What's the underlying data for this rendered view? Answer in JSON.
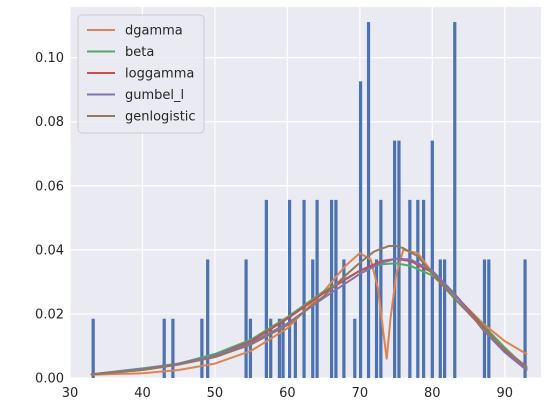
{
  "chart_data": {
    "type": "bar",
    "title": "",
    "xlabel": "",
    "ylabel": "",
    "xlim": [
      30,
      95
    ],
    "ylim": [
      0,
      0.1158
    ],
    "x_ticks": [
      30,
      40,
      50,
      60,
      70,
      80,
      90
    ],
    "y_ticks": [
      0.0,
      0.02,
      0.04,
      0.06,
      0.08,
      0.1
    ],
    "y_tick_labels": [
      "0.00",
      "0.02",
      "0.04",
      "0.06",
      "0.08",
      "0.10"
    ],
    "x_tick_labels": [
      "30",
      "40",
      "50",
      "60",
      "70",
      "80",
      "90"
    ],
    "grid": true,
    "legend_position": "top-left",
    "background_color": "#eaeaf2",
    "bar_color": "#4c72b0",
    "histogram": [
      {
        "x": 33.2,
        "value": 0.0185
      },
      {
        "x": 43.0,
        "value": 0.0185
      },
      {
        "x": 44.2,
        "value": 0.0185
      },
      {
        "x": 48.2,
        "value": 0.0185
      },
      {
        "x": 49.0,
        "value": 0.037
      },
      {
        "x": 54.3,
        "value": 0.037
      },
      {
        "x": 54.9,
        "value": 0.0185
      },
      {
        "x": 57.1,
        "value": 0.0556
      },
      {
        "x": 57.7,
        "value": 0.0185
      },
      {
        "x": 58.9,
        "value": 0.0185
      },
      {
        "x": 59.4,
        "value": 0.0185
      },
      {
        "x": 60.3,
        "value": 0.0556
      },
      {
        "x": 61.1,
        "value": 0.0185
      },
      {
        "x": 62.3,
        "value": 0.0556
      },
      {
        "x": 63.5,
        "value": 0.037
      },
      {
        "x": 64.1,
        "value": 0.0556
      },
      {
        "x": 66.1,
        "value": 0.0556
      },
      {
        "x": 66.7,
        "value": 0.0556
      },
      {
        "x": 67.8,
        "value": 0.037
      },
      {
        "x": 69.3,
        "value": 0.0185
      },
      {
        "x": 70.1,
        "value": 0.0926
      },
      {
        "x": 71.2,
        "value": 0.1111
      },
      {
        "x": 72.3,
        "value": 0.037
      },
      {
        "x": 72.9,
        "value": 0.0556
      },
      {
        "x": 74.8,
        "value": 0.0741
      },
      {
        "x": 75.4,
        "value": 0.0741
      },
      {
        "x": 76.9,
        "value": 0.0556
      },
      {
        "x": 78.0,
        "value": 0.0556
      },
      {
        "x": 78.8,
        "value": 0.0556
      },
      {
        "x": 80.0,
        "value": 0.0741
      },
      {
        "x": 81.1,
        "value": 0.037
      },
      {
        "x": 81.7,
        "value": 0.037
      },
      {
        "x": 83.1,
        "value": 0.1111
      },
      {
        "x": 87.2,
        "value": 0.037
      },
      {
        "x": 87.8,
        "value": 0.037
      },
      {
        "x": 92.8,
        "value": 0.037
      }
    ],
    "series": [
      {
        "name": "dgamma",
        "color": "#dd8452",
        "x": [
          33,
          40,
          45,
          50,
          55,
          60,
          65,
          68,
          70,
          71.5,
          72.5,
          73.2,
          73.7,
          74.2,
          75,
          76,
          78,
          80,
          83,
          87,
          90,
          93
        ],
        "y": [
          0.001,
          0.0015,
          0.0025,
          0.0045,
          0.0085,
          0.0155,
          0.027,
          0.035,
          0.039,
          0.037,
          0.028,
          0.015,
          0.006,
          0.018,
          0.032,
          0.04,
          0.039,
          0.033,
          0.026,
          0.017,
          0.0115,
          0.0075
        ]
      },
      {
        "name": "beta",
        "color": "#55a868",
        "x": [
          33,
          40,
          45,
          50,
          55,
          60,
          65,
          70,
          73,
          75,
          77,
          80,
          83,
          87,
          90,
          93
        ],
        "y": [
          0.0012,
          0.003,
          0.0045,
          0.0075,
          0.012,
          0.019,
          0.027,
          0.0335,
          0.0355,
          0.0358,
          0.035,
          0.032,
          0.026,
          0.0165,
          0.0095,
          0.003
        ]
      },
      {
        "name": "loggamma",
        "color": "#c44e52",
        "x": [
          33,
          40,
          45,
          50,
          55,
          60,
          65,
          70,
          73,
          75,
          77,
          80,
          83,
          87,
          90,
          93
        ],
        "y": [
          0.0012,
          0.0025,
          0.0042,
          0.007,
          0.0115,
          0.0185,
          0.0265,
          0.0335,
          0.0365,
          0.0372,
          0.0365,
          0.033,
          0.0265,
          0.016,
          0.0085,
          0.0025
        ]
      },
      {
        "name": "gumbel_l",
        "color": "#8172b3",
        "x": [
          33,
          40,
          45,
          50,
          55,
          60,
          65,
          70,
          73,
          75,
          77,
          80,
          83,
          87,
          90,
          93
        ],
        "y": [
          0.0012,
          0.0028,
          0.0045,
          0.007,
          0.011,
          0.017,
          0.025,
          0.0325,
          0.036,
          0.0372,
          0.037,
          0.0335,
          0.0265,
          0.015,
          0.008,
          0.0025
        ]
      },
      {
        "name": "genlogistic",
        "color": "#937860",
        "x": [
          33,
          40,
          45,
          50,
          55,
          60,
          65,
          68,
          70,
          72,
          74,
          75,
          76,
          78,
          80,
          83,
          87,
          90,
          93
        ],
        "y": [
          0.0012,
          0.0025,
          0.0042,
          0.0065,
          0.0105,
          0.0165,
          0.0255,
          0.032,
          0.036,
          0.0395,
          0.0412,
          0.0412,
          0.0405,
          0.038,
          0.0325,
          0.025,
          0.0155,
          0.009,
          0.0035
        ]
      }
    ]
  }
}
